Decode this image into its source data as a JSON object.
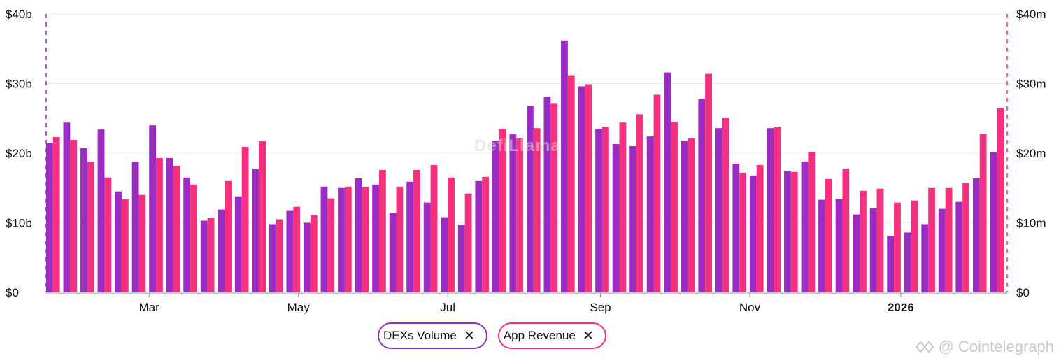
{
  "chart_data": {
    "type": "bar",
    "x_tick_labels": [
      {
        "label": "Mar",
        "bold": false,
        "at": 6.0
      },
      {
        "label": "May",
        "bold": false,
        "at": 14.7
      },
      {
        "label": "Jul",
        "bold": false,
        "at": 23.4
      },
      {
        "label": "Sep",
        "bold": false,
        "at": 32.3
      },
      {
        "label": "Nov",
        "bold": false,
        "at": 41.0
      },
      {
        "label": "2026",
        "bold": true,
        "at": 49.8
      }
    ],
    "y_left": {
      "ticks": [
        "$0",
        "$10b",
        "$20b",
        "$30b",
        "$40b"
      ],
      "max": 40
    },
    "y_right": {
      "ticks": [
        "$0",
        "$10m",
        "$20m",
        "$30m",
        "$40m"
      ],
      "max": 40
    },
    "series": [
      {
        "name": "DEXs Volume",
        "color": "#9a2cc4",
        "axis": "left",
        "unit": "b",
        "values": [
          21.5,
          24.4,
          20.7,
          23.4,
          14.5,
          18.7,
          24.0,
          19.3,
          16.5,
          10.3,
          11.9,
          13.8,
          17.7,
          9.8,
          11.8,
          10.0,
          15.2,
          15.0,
          16.4,
          15.5,
          11.4,
          15.9,
          12.9,
          10.8,
          9.7,
          16.0,
          21.8,
          22.7,
          26.8,
          28.1,
          36.2,
          29.6,
          23.5,
          21.3,
          21.0,
          22.4,
          31.6,
          21.8,
          27.8,
          23.6,
          18.5,
          16.8,
          23.6,
          17.4,
          18.8,
          13.3,
          13.4,
          11.2,
          12.1,
          8.1,
          8.6,
          9.8,
          12.0,
          13.0,
          16.4,
          20.1
        ]
      },
      {
        "name": "App Revenue",
        "color": "#f5317f",
        "axis": "right",
        "unit": "m",
        "values": [
          22.3,
          21.9,
          18.7,
          16.5,
          13.4,
          14.0,
          19.3,
          18.2,
          15.5,
          10.7,
          16.0,
          20.9,
          21.7,
          10.5,
          12.3,
          11.1,
          13.5,
          15.2,
          15.1,
          17.6,
          15.2,
          17.6,
          18.3,
          16.5,
          14.2,
          16.6,
          23.5,
          22.2,
          23.6,
          27.2,
          31.2,
          29.9,
          23.8,
          24.4,
          25.6,
          28.4,
          24.5,
          22.1,
          31.4,
          25.1,
          17.2,
          18.3,
          23.8,
          17.3,
          20.2,
          16.3,
          17.8,
          14.6,
          14.9,
          12.9,
          13.2,
          15.0,
          15.0,
          15.7,
          22.8,
          26.5
        ]
      }
    ],
    "grid": "horizontal",
    "legend_placement": "bottom-center"
  },
  "legend": {
    "items": [
      {
        "label": "DEXs Volume",
        "close": "✕"
      },
      {
        "label": "App Revenue",
        "close": "✕"
      }
    ]
  },
  "watermark": {
    "text": "DefiLlama"
  },
  "credit": {
    "text": "@ Cointelegraph"
  },
  "colors": {
    "dex": "#9a2cc4",
    "revenue": "#f5317f",
    "grid": "#ececec",
    "axis": "#999999"
  }
}
